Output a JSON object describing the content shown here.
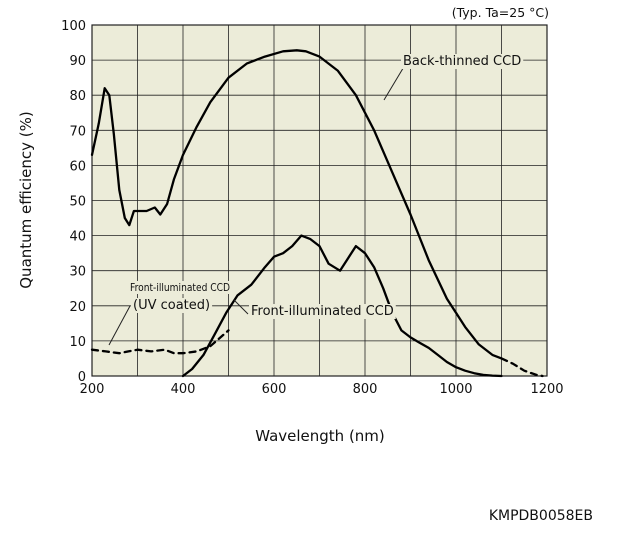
{
  "chart_data": {
    "type": "line",
    "xlabel": "Wavelength (nm)",
    "ylabel": "Quantum efficiency (%)",
    "conditions": "(Typ. Ta=25 °C)",
    "code": "KMPDB0058EB",
    "xlim": [
      200,
      1200
    ],
    "ylim": [
      0,
      100
    ],
    "xticks": [
      200,
      400,
      600,
      800,
      1000,
      1200
    ],
    "yticks": [
      0,
      10,
      20,
      30,
      40,
      50,
      60,
      70,
      80,
      90,
      100
    ],
    "grid": true,
    "colors": {
      "frame": "#ececd9",
      "grid": "#222222",
      "line": "#000000"
    },
    "series": [
      {
        "name": "Back-thinned CCD",
        "label_line1": "Back-thinned CCD",
        "dash": "solid",
        "x": [
          200,
          215,
          228,
          238,
          248,
          260,
          272,
          282,
          292,
          305,
          320,
          338,
          350,
          365,
          380,
          400,
          430,
          460,
          500,
          540,
          580,
          620,
          650,
          670,
          700,
          740,
          780,
          820,
          860,
          900,
          940,
          980,
          1000,
          1020,
          1050,
          1080,
          1100
        ],
        "y": [
          63,
          72,
          82,
          80,
          69,
          53,
          45,
          43,
          47,
          47,
          47,
          48,
          46,
          49,
          56,
          63,
          71,
          78,
          85,
          89,
          91,
          92.5,
          92.8,
          92.5,
          91,
          87,
          80,
          70,
          58,
          46,
          33,
          22,
          18,
          14,
          9,
          6,
          5
        ]
      },
      {
        "name": "Back-thinned CCD",
        "label_line1": "",
        "dash": "dashed",
        "x": [
          1100,
          1125,
          1150,
          1175,
          1190
        ],
        "y": [
          5,
          3.5,
          1.5,
          0.4,
          0
        ]
      },
      {
        "name": "Front-illuminated CCD",
        "label_line1": "Front-illuminated CCD",
        "dash": "solid",
        "x": [
          400,
          420,
          445,
          470,
          495,
          520,
          550,
          580,
          600,
          620,
          640,
          660,
          680,
          700,
          720,
          745,
          760,
          780,
          800,
          820,
          840,
          860,
          880,
          900,
          920,
          940,
          960,
          980,
          1000,
          1020,
          1040,
          1060,
          1080,
          1100
        ],
        "y": [
          0,
          2,
          6,
          12,
          18,
          23,
          26,
          31,
          34,
          35,
          37,
          40,
          39,
          37,
          32,
          30,
          33,
          37,
          35,
          31,
          25,
          18,
          13,
          11,
          9.5,
          8,
          6,
          4,
          2.5,
          1.5,
          0.8,
          0.3,
          0.1,
          0
        ]
      },
      {
        "name": "Front-illuminated CCD (UV coated)",
        "label_line1": "Front-illuminated CCD",
        "label_line2": "(UV coated)",
        "dash": "dashed",
        "x": [
          200,
          230,
          260,
          280,
          300,
          330,
          360,
          380,
          400,
          430,
          460,
          500
        ],
        "y": [
          7.5,
          7,
          6.5,
          7,
          7.5,
          7,
          7.5,
          6.5,
          6.5,
          7,
          8.5,
          13
        ]
      }
    ]
  }
}
